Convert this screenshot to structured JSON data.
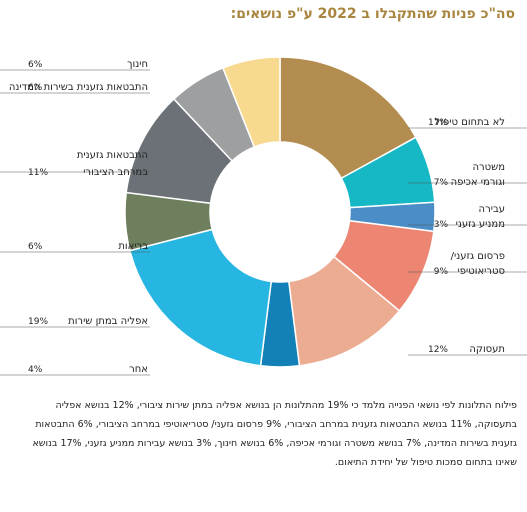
{
  "title": "סה\"כ פניות שהתקבלו ב 2022 ע\"פ נושאים:",
  "chart_data": {
    "type": "donut",
    "title": "סה\"כ פניות שהתקבלו ב 2022 ע\"פ נושאים:",
    "unit": "%",
    "slices": [
      {
        "label": "לא בתחום טיפול",
        "lines": [
          "לא בתחום טיפול"
        ],
        "value": 17,
        "pct_label": "17%",
        "color": "#b38d50"
      },
      {
        "label": "משטרה וגורמי אכיפה",
        "lines": [
          "משטרה",
          "וגורמי אכיפה"
        ],
        "value": 7,
        "pct_label": "7%",
        "color": "#15b8c4"
      },
      {
        "label": "עבירה ממניע גזעני",
        "lines": [
          "עבירה",
          "ממניע גזעני"
        ],
        "value": 3,
        "pct_label": "3%",
        "color": "#4a8dc7"
      },
      {
        "label": "פרסום גזעני/ סטריאוטיפי",
        "lines": [
          "פרסום גזעני/",
          "סטריאוטיפי"
        ],
        "value": 9,
        "pct_label": "9%",
        "color": "#ec8672"
      },
      {
        "label": "תעסוקה",
        "lines": [
          "תעסוקה"
        ],
        "value": 12,
        "pct_label": "12%",
        "color": "#ecac92"
      },
      {
        "label": "אחר",
        "lines": [
          "אחר"
        ],
        "value": 4,
        "pct_label": "4%",
        "color": "#1380b8"
      },
      {
        "label": "אפליה במתן שירות",
        "lines": [
          "אפליה במתן שירות"
        ],
        "value": 19,
        "pct_label": "19%",
        "color": "#27b6e2"
      },
      {
        "label": "בריאות",
        "lines": [
          "בריאות"
        ],
        "value": 6,
        "pct_label": "6%",
        "color": "#6d7f5c"
      },
      {
        "label": "התבטאות גזענית במרחב הציבורי",
        "lines": [
          "התבטאות גזענית",
          "במרחב הציבורי"
        ],
        "value": 11,
        "pct_label": "11%",
        "color": "#6b7176"
      },
      {
        "label": "התבטאות גזענית בשירות המדינה",
        "lines": [
          "התבטאות גזענית בשירות המדינה"
        ],
        "value": 6,
        "pct_label": "6%",
        "color": "#9d9fa1"
      },
      {
        "label": "חינוך",
        "lines": [
          "חינוך"
        ],
        "value": 6,
        "pct_label": "6%",
        "color": "#f7d990"
      }
    ]
  },
  "footnote": "פילוח התלונות לפי נושאי הפנייה מלמד כי 19% מהתלונות הן בנושא אפליה במתן שירות ציבורי, 12% בנושא אפליה בתעסוקה, 11% בנושא התבטאות גזענית במרחב הציבורי, 9% פרסום גזעני/ סטריאוטיפי במרחב הציבורי, 6% התבטאות גזענית בשירות המדינה, 7% בנושא משטרה וגורמי אכיפה, 6% בנושא חינוך, 3% בנושא עבירות ממניע גזעני, 17% בנושא שאינו בתחום סמכות טיפול של יחידת התיאום."
}
